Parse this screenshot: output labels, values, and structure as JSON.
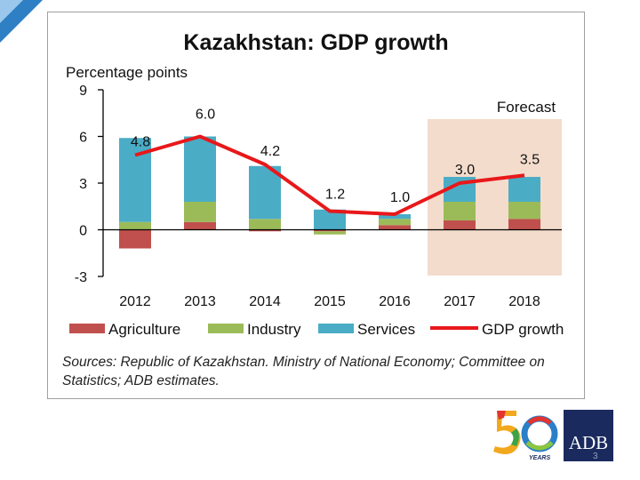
{
  "slide": {
    "page_number": "3"
  },
  "sources_text": "Sources: Republic of Kazakhstan. Ministry of National Economy; Committee on Statistics;  ADB estimates.",
  "logos": {
    "adb": "ADB",
    "years_word": "YEARS"
  },
  "colors": {
    "agriculture": "#c0504d",
    "industry": "#9bbb59",
    "services": "#4bacc6",
    "gdp": "#e8181a",
    "forecast_bg": "#f3dccc",
    "corner_blue": "#2e7fc4",
    "adb_bg": "#1b2a5e"
  },
  "chart_data": {
    "type": "bar",
    "stacked": true,
    "title": "Kazakhstan: GDP growth",
    "ylabel": "Percentage points",
    "xlabel": "",
    "ylim": [
      -3,
      9
    ],
    "yticks": [
      9,
      6,
      3,
      0,
      -3
    ],
    "categories": [
      "2012",
      "2013",
      "2014",
      "2015",
      "2016",
      "2017",
      "2018"
    ],
    "series": [
      {
        "name": "Agriculture",
        "values": [
          -1.2,
          0.5,
          -0.1,
          -0.1,
          0.3,
          0.6,
          0.7
        ]
      },
      {
        "name": "Industry",
        "values": [
          0.5,
          1.3,
          0.7,
          -0.2,
          0.4,
          1.2,
          1.1
        ]
      },
      {
        "name": "Services",
        "values": [
          5.4,
          4.2,
          3.4,
          1.3,
          0.3,
          1.6,
          1.6
        ]
      }
    ],
    "line": {
      "name": "GDP growth",
      "values": [
        4.8,
        6.0,
        4.2,
        1.2,
        1.0,
        3.0,
        3.5
      ]
    },
    "data_labels": [
      "4.8",
      "6.0",
      "4.2",
      "1.2",
      "1.0",
      "3.0",
      "3.5"
    ],
    "forecast": {
      "label": "Forecast",
      "categories": [
        "2017",
        "2018"
      ]
    },
    "legend_position": "bottom"
  }
}
